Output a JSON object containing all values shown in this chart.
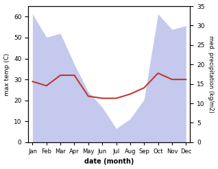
{
  "months": [
    "Jan",
    "Feb",
    "Mar",
    "Apr",
    "May",
    "Jun",
    "Jul",
    "Aug",
    "Sep",
    "Oct",
    "Nov",
    "Dec"
  ],
  "temp": [
    29,
    27,
    32,
    32,
    22,
    21,
    21,
    23,
    26,
    33,
    30,
    30
  ],
  "precip": [
    33,
    27,
    28,
    20,
    13,
    9,
    3.5,
    6,
    11,
    33,
    29,
    30
  ],
  "temp_color": "#c0392b",
  "precip_color": "#b0b8e8",
  "temp_label": "max temp (C)",
  "precip_label": "med. precipitation (kg/m2)",
  "xlabel": "date (month)",
  "ylim_temp": [
    0,
    65
  ],
  "ylim_precip": [
    0,
    35
  ],
  "yticks_temp": [
    0,
    10,
    20,
    30,
    40,
    50,
    60
  ],
  "yticks_precip": [
    0,
    5,
    10,
    15,
    20,
    25,
    30,
    35
  ],
  "bg_color": "#ffffff"
}
